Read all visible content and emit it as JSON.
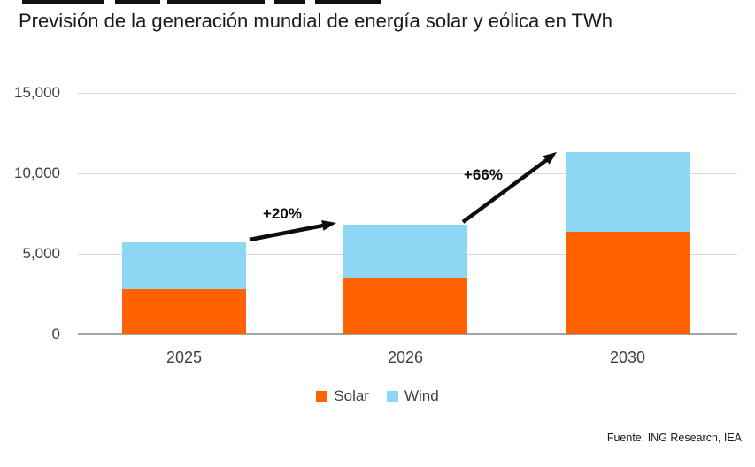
{
  "title": "Previsión de la generación mundial de energía solar y eólica en TWh",
  "source": "Fuente: ING Research, IEA",
  "colors": {
    "solar": "#FF6200",
    "wind": "#8DD6F4",
    "gridline": "#D9D9D9",
    "axis_line": "#A6A6A6",
    "axis_text": "#404040",
    "arrow": "#0D0D0D"
  },
  "legend": [
    {
      "label": "Solar",
      "color": "#FF6200"
    },
    {
      "label": "Wind",
      "color": "#8DD6F4"
    }
  ],
  "chart_data": {
    "type": "bar",
    "stacked": true,
    "categories": [
      "2025",
      "2026",
      "2030"
    ],
    "series": [
      {
        "name": "Solar",
        "color": "#FF6200",
        "values": [
          2800,
          3500,
          6400
        ]
      },
      {
        "name": "Wind",
        "color": "#8DD6F4",
        "values": [
          2900,
          3300,
          4900
        ]
      }
    ],
    "totals": [
      5700,
      6800,
      11300
    ],
    "growth_labels": [
      "+20%",
      "+66%"
    ],
    "title": "Previsión de la generación mundial de energía solar y eólica en TWh",
    "xlabel": "",
    "ylabel": "",
    "ylim": [
      0,
      15000
    ],
    "yticks": [
      0,
      5000,
      10000,
      15000
    ],
    "ytick_labels": [
      "0",
      "5,000",
      "10,000",
      "15,000"
    ],
    "grid": true,
    "legend_position": "bottom"
  }
}
